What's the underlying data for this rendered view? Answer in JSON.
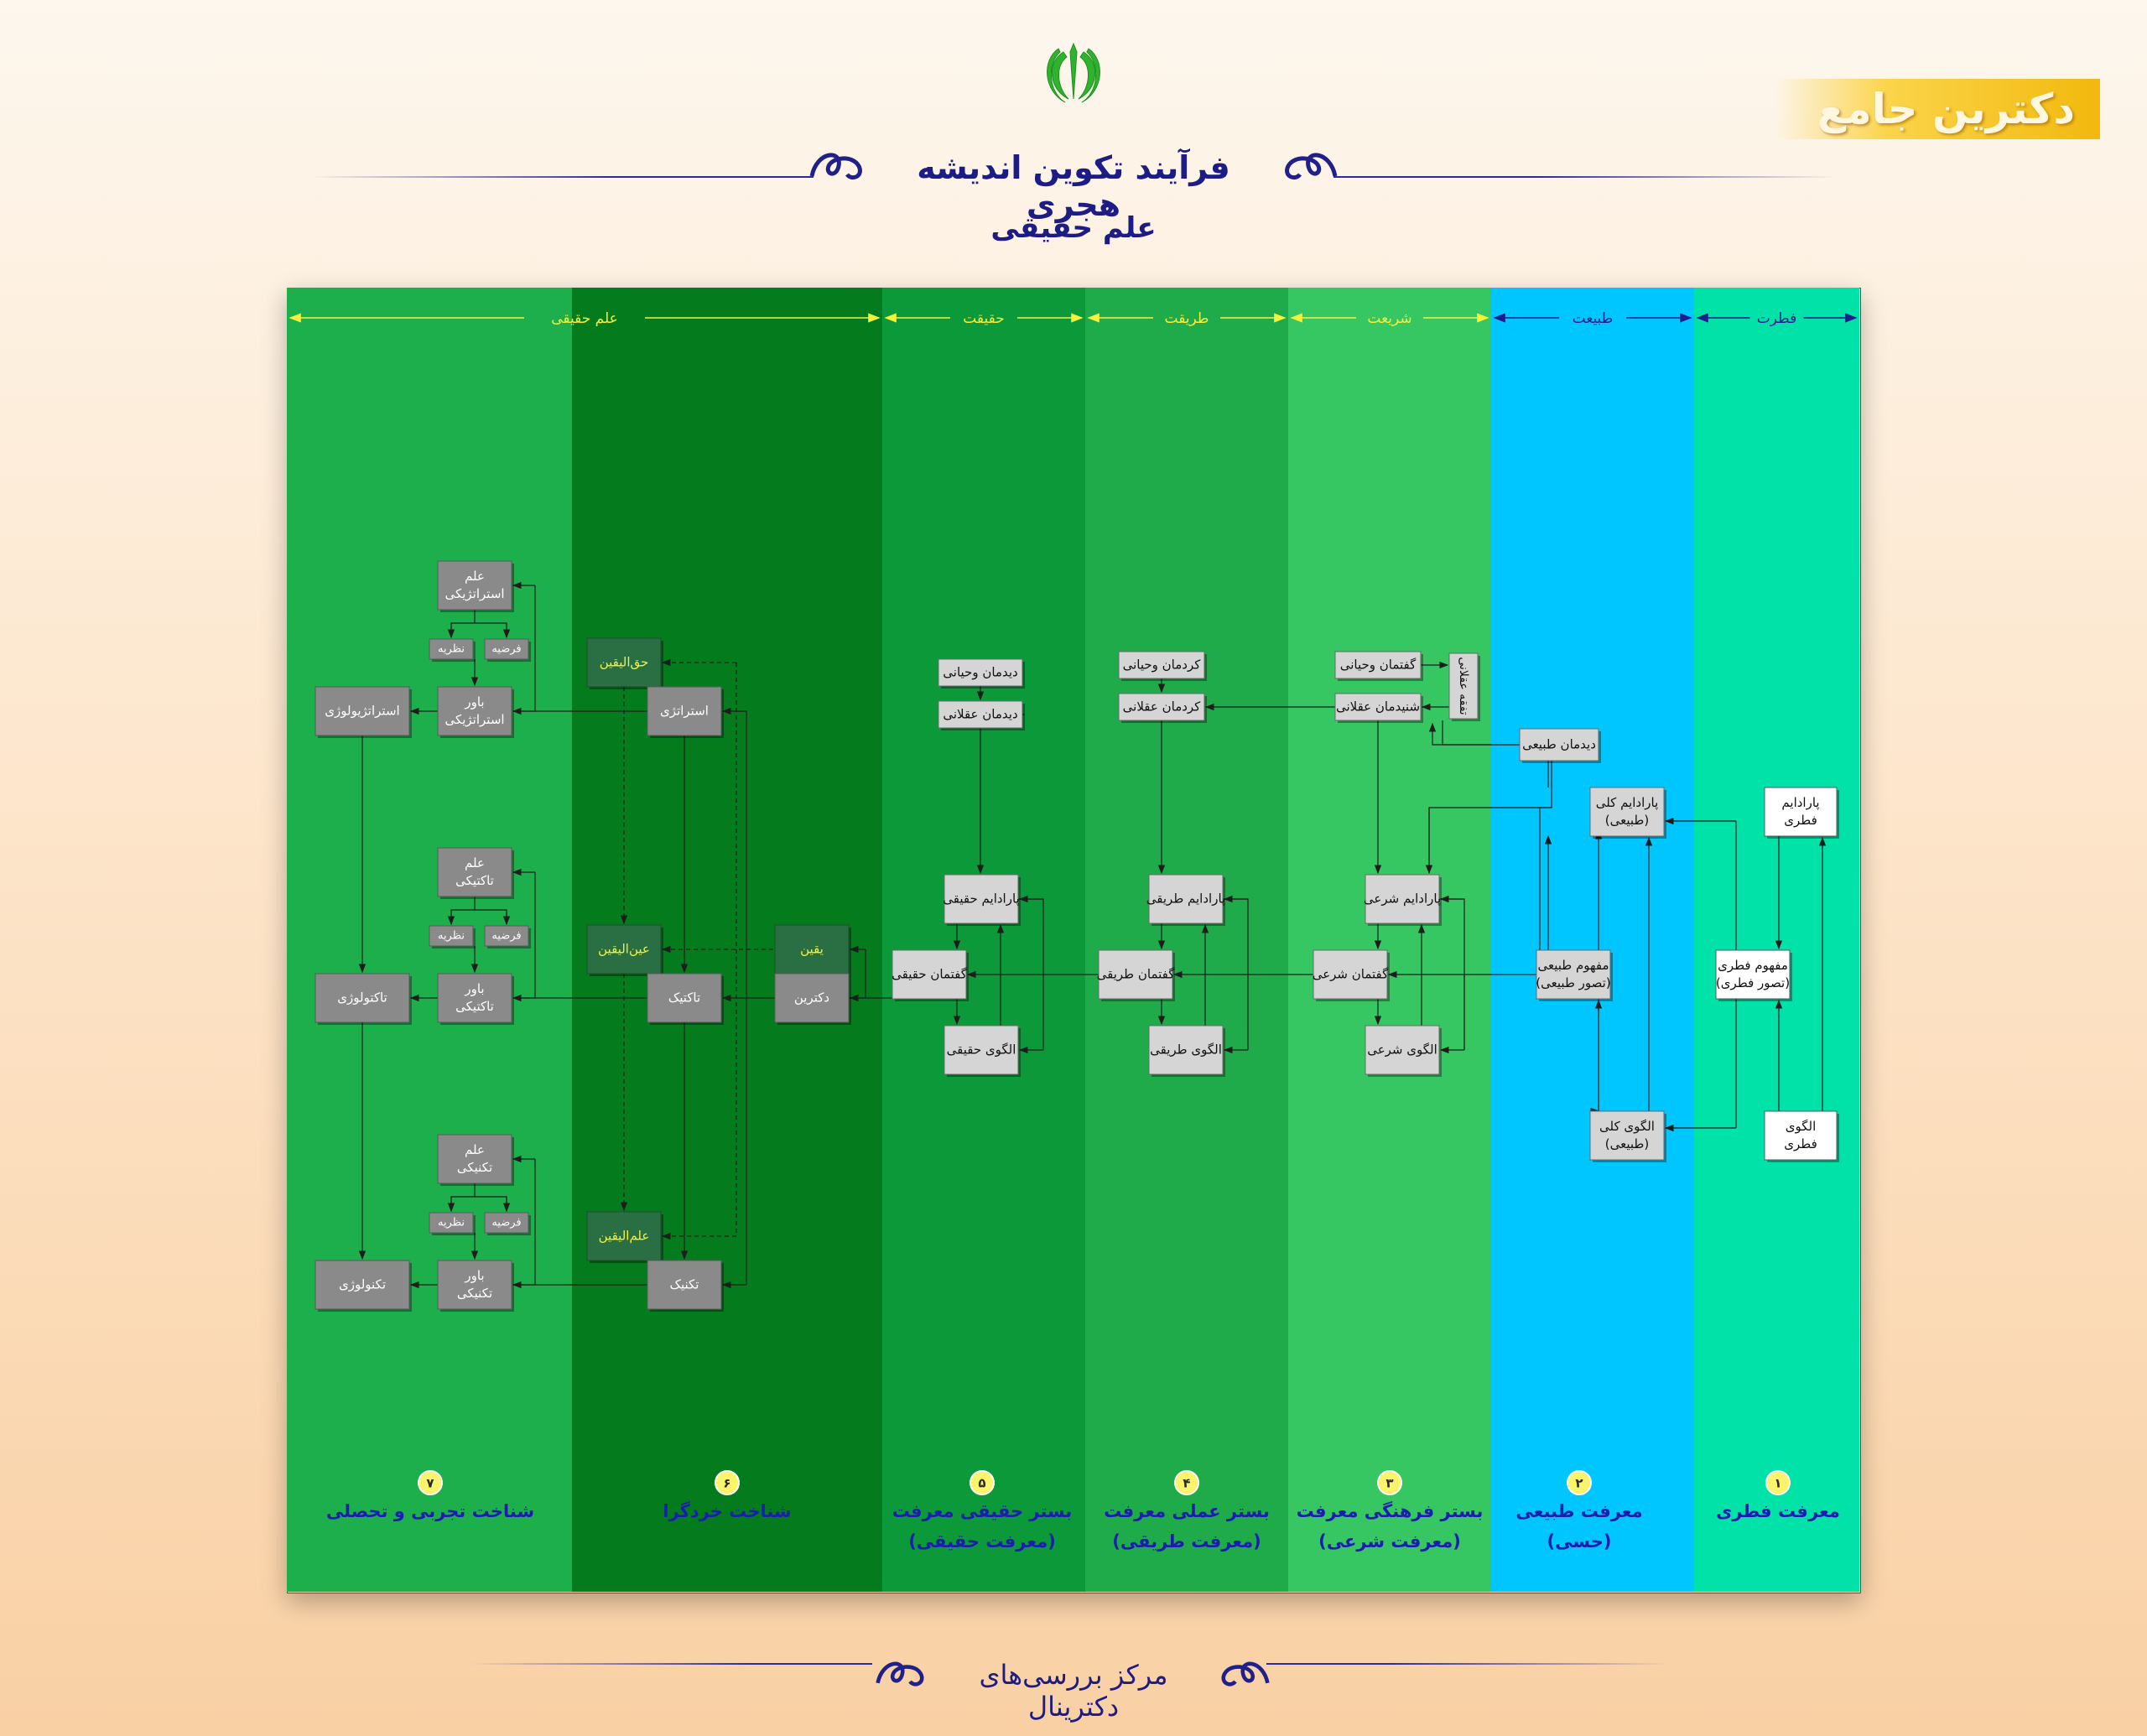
{
  "header": {
    "brand": "دکترین جامع",
    "title": "فرآیند تکوین اندیشه هجری",
    "subtitle": "علم حقیقی",
    "footer": "مرکز بررسی‌های دکترینال"
  },
  "colors": {
    "title_text": "#1c1c84",
    "brand_gold": "#f5c21c",
    "col_fetrat": "#00e2a8",
    "col_tabiat": "#00c6ff",
    "col_shariat": "#36c763",
    "col_tarighat": "#20ab4a",
    "col_haghighat": "#0c9939",
    "col_6": "#047c1d",
    "col_7": "#1daf4c",
    "box_gray": "#8a8a8a",
    "box_light": "#d5d5d5",
    "box_dark_green": "#2a6e44",
    "header_yellow": "#f4f23a"
  },
  "diagram": {
    "headers": {
      "fetrat": "فطرت",
      "tabiat": "طبیعت",
      "shariat": "شریعت",
      "tarighat": "طریقت",
      "haghighat": "حقیقت",
      "elm": "علم حقیقی"
    },
    "columns": [
      {
        "num": "۱",
        "lines": [
          "معرفت فطری"
        ]
      },
      {
        "num": "۲",
        "lines": [
          "معرفت طبیعی",
          "(حسی)"
        ]
      },
      {
        "num": "۳",
        "lines": [
          "بستر فرهنگی معرفت",
          "(معرفت شرعی)"
        ]
      },
      {
        "num": "۴",
        "lines": [
          "بستر عملی معرفت",
          "(معرفت طریقی)"
        ]
      },
      {
        "num": "۵",
        "lines": [
          "بستر حقیقی معرفت",
          "(معرفت حقیقی)"
        ]
      },
      {
        "num": "۶",
        "lines": [
          "شناخت خردگرا"
        ]
      },
      {
        "num": "۷",
        "lines": [
          "شناخت تجربی و تحصلی"
        ]
      }
    ],
    "boxes": {
      "paradigm_fetri": [
        "پارادایم",
        "فطری"
      ],
      "mafhum_fetri": [
        "مفهوم فطری",
        "(تصور فطری)"
      ],
      "olgu_fetri": [
        "الگوی",
        "فطری"
      ],
      "paradigm_kolli": [
        "پارادایم کلی",
        "(طبیعی)"
      ],
      "mafhum_tabii": [
        "مفهوم طبیعی",
        "(تصور طبیعی)"
      ],
      "olgu_kolli": [
        "الگوی کلی",
        "(طبیعی)"
      ],
      "didman_tabii": [
        "دیدمان طبیعی"
      ],
      "goftman_vahyani": [
        "گفتمان وحیانی"
      ],
      "shenidman_aghlani": [
        "شنیدمان عقلانی"
      ],
      "tafaghoh_aghlani": [
        "تفقه عقلانی"
      ],
      "paradigm_sharii": [
        "پارادایم شرعی"
      ],
      "goftman_sharii": [
        "گفتمان شرعی"
      ],
      "olgu_sharii": [
        "الگوی شرعی"
      ],
      "kardman_vahyani": [
        "کردمان وحیانی"
      ],
      "kardman_aghlani": [
        "کردمان عقلانی"
      ],
      "paradigm_tarighi": [
        "پارادایم طریقی"
      ],
      "goftman_tarighi": [
        "گفتمان طریقی"
      ],
      "olgu_tarighi": [
        "الگوی طریقی"
      ],
      "didman_vahyani": [
        "دیدمان وحیانی"
      ],
      "didman_aghlani": [
        "دیدمان عقلانی"
      ],
      "paradigm_haghighi": [
        "پارادایم حقیقی"
      ],
      "goftman_haghighi": [
        "گفتمان حقیقی"
      ],
      "olgu_haghighi": [
        "الگوی حقیقی"
      ],
      "yaghin": [
        "یقین"
      ],
      "doctrine": [
        "دکترین"
      ],
      "haghol_yaghin": [
        "حق‌الیقین"
      ],
      "eynol_yaghin": [
        "عین‌الیقین"
      ],
      "elmol_yaghin": [
        "علم‌الیقین"
      ],
      "strategy": [
        "استراتژی"
      ],
      "tactic": [
        "تاکتیک"
      ],
      "technique": [
        "تکنیک"
      ],
      "elm_strategic": [
        "علم",
        "استراتژیکی"
      ],
      "nazarie_1": [
        "نظریه"
      ],
      "farzie_1": [
        "فرضیه"
      ],
      "bavar_strategic": [
        "باور",
        "استراتژیکی"
      ],
      "strategiology": [
        "استراتژیولوژی"
      ],
      "elm_tactical": [
        "علم",
        "تاکتیکی"
      ],
      "nazarie_2": [
        "نظریه"
      ],
      "farzie_2": [
        "فرضیه"
      ],
      "bavar_tactical": [
        "باور",
        "تاکتیکی"
      ],
      "tactology": [
        "تاکتولوژی"
      ],
      "elm_technical": [
        "علم",
        "تکنیکی"
      ],
      "nazarie_3": [
        "نظریه"
      ],
      "farzie_3": [
        "فرضیه"
      ],
      "bavar_technical": [
        "باور",
        "تکنیکی"
      ],
      "technology": [
        "تکنولوژی"
      ]
    }
  }
}
